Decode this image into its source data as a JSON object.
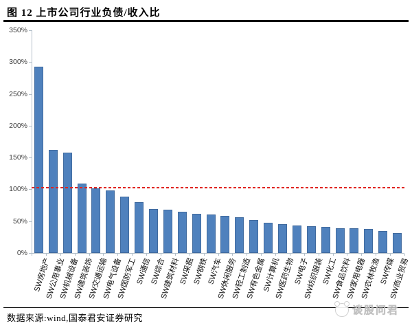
{
  "header": {
    "title": "图 12 上市公司行业负债/收入比"
  },
  "chart_data": {
    "type": "bar",
    "title": "图 12 上市公司行业负债/收入比",
    "categories": [
      "SW房地产",
      "SW公用事业",
      "SW机械设备",
      "SW建筑装饰",
      "SW交通运输",
      "SW电气设备",
      "SW国防军工",
      "SW通信",
      "SW综合",
      "SW建筑材料",
      "SW采掘",
      "SW钢铁",
      "SW汽车",
      "SW休闲服务",
      "SW轻工制造",
      "SW有色金属",
      "SW计算机",
      "SW医药生物",
      "SW电子",
      "SW纺织服装",
      "SW化工",
      "SW食品饮料",
      "SW家用电器",
      "SW农林牧渔",
      "SW传媒",
      "SW商业贸易"
    ],
    "values": [
      293,
      162,
      158,
      109,
      102,
      98,
      89,
      80,
      69,
      68,
      65,
      62,
      60,
      58,
      56,
      52,
      48,
      45,
      43,
      42,
      41,
      39,
      39,
      38,
      35,
      31
    ],
    "unit": "%",
    "xlabel": "",
    "ylabel": "",
    "ylim": [
      0,
      350
    ],
    "yticks": [
      0,
      50,
      100,
      150,
      200,
      250,
      300,
      350
    ],
    "ytick_suffix": "%",
    "grid": false,
    "legend": false,
    "bar_color": "#4f81bd",
    "reference_line": {
      "value": 103,
      "style": "dashed",
      "color": "#e02420"
    }
  },
  "footer": {
    "source": "数据来源:wind,国泰君安证券研究"
  },
  "watermark": {
    "text": "谈股问君"
  }
}
